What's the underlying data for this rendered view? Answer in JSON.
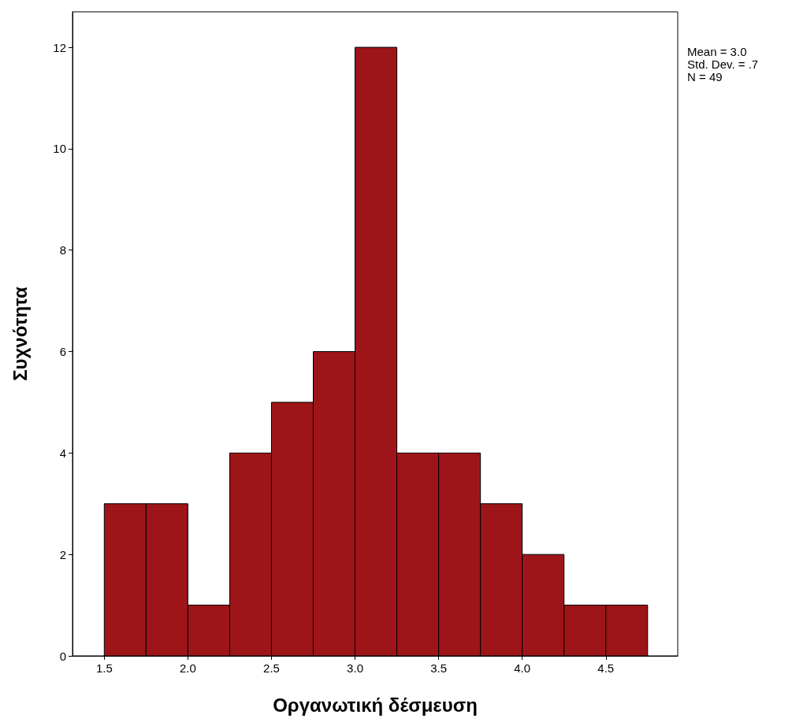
{
  "chart_data": {
    "type": "histogram",
    "xlabel": "Οργανωτική δέσμευση",
    "ylabel": "Συχνότητα",
    "bins": [
      1.5,
      1.75,
      2.0,
      2.25,
      2.5,
      2.75,
      3.0,
      3.25,
      3.5,
      3.75,
      4.0,
      4.25,
      4.5,
      4.75
    ],
    "values": [
      3,
      3,
      1,
      4,
      5,
      6,
      12,
      4,
      4,
      3,
      2,
      1,
      1
    ],
    "color": "#9e1519",
    "xlim": [
      1.31,
      4.93
    ],
    "xticks": [
      {
        "value": 1.5,
        "label": "1.5"
      },
      {
        "value": 2,
        "label": "2.0"
      },
      {
        "value": 2.5,
        "label": "2.5"
      },
      {
        "value": 3,
        "label": "3.0"
      },
      {
        "value": 3.5,
        "label": "3.5"
      },
      {
        "value": 4,
        "label": "4.0"
      },
      {
        "value": 4.5,
        "label": "4.5"
      }
    ],
    "ylim": [
      0,
      12.7
    ],
    "yticks": [
      0,
      2,
      4,
      6,
      8,
      10,
      12
    ],
    "grid": false,
    "annotations": [
      "Mean = 3.0",
      "Std. Dev. = .7",
      "N = 49"
    ]
  }
}
